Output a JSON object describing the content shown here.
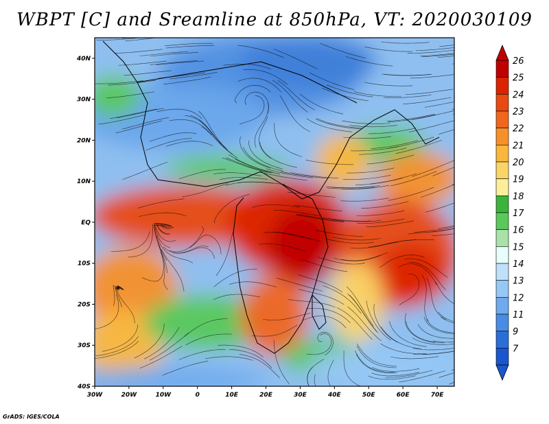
{
  "title": "WBPT [C] and Sreamline at 850hPa, VT: 2020030109",
  "footer": "GrADS: IGES/COLA",
  "map": {
    "lon_range": [
      -30,
      75
    ],
    "lat_range": [
      -40,
      45
    ],
    "lon_ticks": [
      {
        "value": -30,
        "label": "30W"
      },
      {
        "value": -20,
        "label": "20W"
      },
      {
        "value": -10,
        "label": "10W"
      },
      {
        "value": 0,
        "label": "0"
      },
      {
        "value": 10,
        "label": "10E"
      },
      {
        "value": 20,
        "label": "20E"
      },
      {
        "value": 30,
        "label": "30E"
      },
      {
        "value": 40,
        "label": "40E"
      },
      {
        "value": 50,
        "label": "50E"
      },
      {
        "value": 60,
        "label": "60E"
      },
      {
        "value": 70,
        "label": "70E"
      }
    ],
    "lat_ticks": [
      {
        "value": 40,
        "label": "40N"
      },
      {
        "value": 30,
        "label": "30N"
      },
      {
        "value": 20,
        "label": "20N"
      },
      {
        "value": 10,
        "label": "10N"
      },
      {
        "value": 0,
        "label": "EQ"
      },
      {
        "value": -10,
        "label": "10S"
      },
      {
        "value": -20,
        "label": "20S"
      },
      {
        "value": -30,
        "label": "30S"
      },
      {
        "value": -40,
        "label": "40S"
      }
    ]
  },
  "colorbar": {
    "labels": [
      "26",
      "25",
      "24",
      "23",
      "22",
      "21",
      "20",
      "19",
      "18",
      "17",
      "16",
      "15",
      "14",
      "13",
      "12",
      "11",
      "9",
      "7"
    ],
    "colors": [
      "#c00000",
      "#dc2300",
      "#e94a12",
      "#f0661e",
      "#f7902a",
      "#fbb63c",
      "#fbd468",
      "#fcee9a",
      "#3cb43c",
      "#5ac85a",
      "#a8e2a8",
      "#e6fffa",
      "#bfe0fb",
      "#96c8f5",
      "#6eaaed",
      "#4a8ce3",
      "#2a6fd8",
      "#1a57cc"
    ]
  }
}
